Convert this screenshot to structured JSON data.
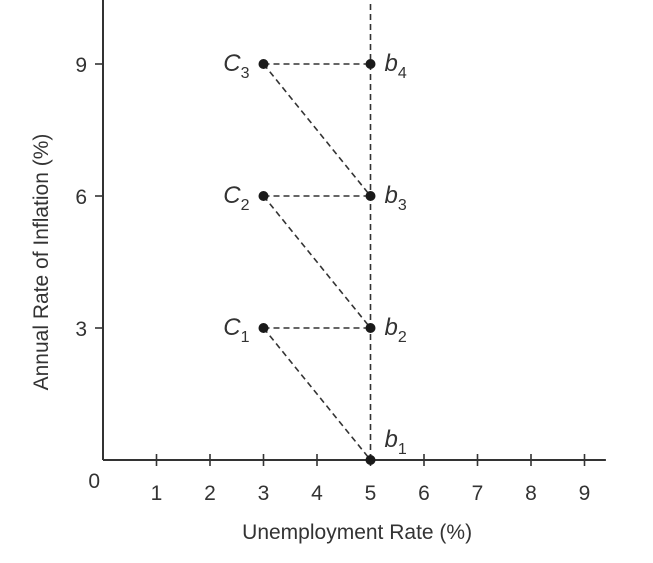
{
  "chart_data": {
    "type": "scatter",
    "xlabel": "Unemployment Rate (%)",
    "ylabel": "Annual Rate of Inflation (%)",
    "xlim": [
      0,
      9.4
    ],
    "ylim": [
      0,
      10.5
    ],
    "origin_label": "0",
    "x_ticks": [
      1,
      2,
      3,
      4,
      5,
      6,
      7,
      8,
      9
    ],
    "y_ticks": [
      3,
      6,
      9
    ],
    "vertical_guide_x": 5,
    "points": [
      {
        "id": "b1",
        "base": "b",
        "sub": "1",
        "x": 5,
        "y": 0,
        "label_side": "above-right"
      },
      {
        "id": "b2",
        "base": "b",
        "sub": "2",
        "x": 5,
        "y": 3,
        "label_side": "right"
      },
      {
        "id": "b3",
        "base": "b",
        "sub": "3",
        "x": 5,
        "y": 6,
        "label_side": "right"
      },
      {
        "id": "b4",
        "base": "b",
        "sub": "4",
        "x": 5,
        "y": 9,
        "label_side": "right"
      },
      {
        "id": "C1",
        "base": "C",
        "sub": "1",
        "x": 3,
        "y": 3,
        "label_side": "left"
      },
      {
        "id": "C2",
        "base": "C",
        "sub": "2",
        "x": 3,
        "y": 6,
        "label_side": "left"
      },
      {
        "id": "C3",
        "base": "C",
        "sub": "3",
        "x": 3,
        "y": 9,
        "label_side": "left"
      }
    ],
    "segments": [
      [
        "C1",
        "b2"
      ],
      [
        "C2",
        "b3"
      ],
      [
        "C3",
        "b4"
      ],
      [
        "C1",
        "b1"
      ],
      [
        "C2",
        "b2"
      ],
      [
        "C3",
        "b3"
      ]
    ]
  }
}
